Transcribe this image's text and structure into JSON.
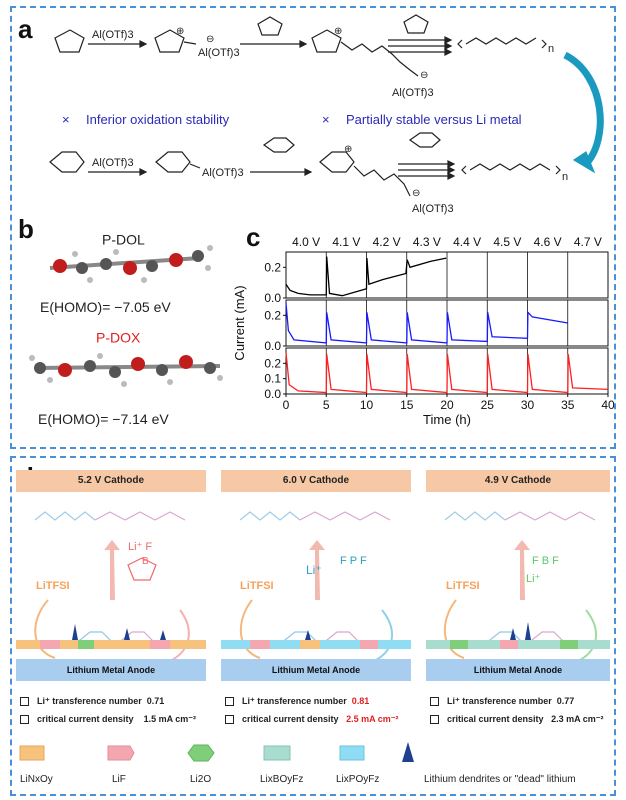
{
  "panels": {
    "a": "a",
    "b": "b",
    "c": "c",
    "d": "d"
  },
  "panel_a": {
    "catalyst": "Al(OTf)3",
    "pos_sign": "⊕",
    "neg_sign": "⊖",
    "cation_label_1": "Al(OTf)3",
    "chain_end_label": "Al(OTf)3",
    "note_1": "Inferior oxidation stability",
    "note_2": "Partially stable versus Li metal",
    "cross": "×",
    "sub_n": "n"
  },
  "panel_b": {
    "pdol_title": "P-DOL",
    "pdol_homo": "E(HOMO)= −7.05 eV",
    "pdox_title": "P-DOX",
    "pdox_homo": "E(HOMO)= −7.14 eV"
  },
  "chart_data": {
    "type": "line",
    "voltage_labels": [
      "4.0 V",
      "4.1 V",
      "4.2 V",
      "4.3 V",
      "4.4 V",
      "4.5 V",
      "4.6 V",
      "4.7 V"
    ],
    "xlabel": "Time (h)",
    "ylabel": "Current (mA)",
    "xlim": [
      0,
      40
    ],
    "x_ticks": [
      "0",
      "5",
      "10",
      "15",
      "20",
      "25",
      "30",
      "35",
      "40"
    ],
    "subplots": [
      {
        "ylim": [
          0,
          0.3
        ],
        "y_ticks": [
          "0.0",
          "0.2"
        ],
        "color": "#000000",
        "points": [
          [
            0,
            0.09
          ],
          [
            0.5,
            0.05
          ],
          [
            1.5,
            0.03
          ],
          [
            3,
            0.02
          ],
          [
            5,
            0.02
          ],
          [
            5.05,
            0.27
          ],
          [
            5.4,
            0.03
          ],
          [
            7,
            0.015
          ],
          [
            10,
            0.06
          ],
          [
            10.05,
            0.26
          ],
          [
            10.3,
            0.09
          ],
          [
            12,
            0.12
          ],
          [
            14.9,
            0.16
          ],
          [
            15.05,
            0.25
          ],
          [
            15.4,
            0.2
          ],
          [
            18,
            0.24
          ],
          [
            19.9,
            0.26
          ]
        ]
      },
      {
        "ylim": [
          0,
          0.3
        ],
        "y_ticks": [
          "0.0",
          "0.2"
        ],
        "color": "#1a1aff",
        "points": [
          [
            0,
            0.28
          ],
          [
            0.3,
            0.1
          ],
          [
            1,
            0.04
          ],
          [
            5,
            0.02
          ],
          [
            5.05,
            0.22
          ],
          [
            5.6,
            0.04
          ],
          [
            10,
            0.02
          ],
          [
            10.05,
            0.22
          ],
          [
            10.6,
            0.04
          ],
          [
            15,
            0.02
          ],
          [
            15.05,
            0.22
          ],
          [
            15.6,
            0.04
          ],
          [
            20,
            0.02
          ],
          [
            20.05,
            0.22
          ],
          [
            20.6,
            0.04
          ],
          [
            25,
            0.03
          ],
          [
            25.05,
            0.22
          ],
          [
            25.6,
            0.06
          ],
          [
            30,
            0.05
          ],
          [
            30.05,
            0.22
          ],
          [
            30.6,
            0.19
          ],
          [
            35,
            0.15
          ]
        ]
      },
      {
        "ylim": [
          0,
          0.3
        ],
        "y_ticks": [
          "0.0",
          "0.1",
          "0.2"
        ],
        "color": "#ff2020",
        "points": [
          [
            0,
            0.27
          ],
          [
            0.4,
            0.06
          ],
          [
            1.5,
            0.02
          ],
          [
            5,
            0.01
          ],
          [
            5.05,
            0.26
          ],
          [
            5.6,
            0.03
          ],
          [
            10,
            0.01
          ],
          [
            10.05,
            0.26
          ],
          [
            10.6,
            0.03
          ],
          [
            15,
            0.01
          ],
          [
            15.05,
            0.26
          ],
          [
            15.6,
            0.03
          ],
          [
            20,
            0.01
          ],
          [
            20.05,
            0.26
          ],
          [
            20.6,
            0.03
          ],
          [
            25,
            0.01
          ],
          [
            25.05,
            0.26
          ],
          [
            25.6,
            0.03
          ],
          [
            30,
            0.01
          ],
          [
            30.05,
            0.26
          ],
          [
            30.6,
            0.03
          ],
          [
            35,
            0.01
          ],
          [
            35.05,
            0.26
          ],
          [
            35.6,
            0.04
          ],
          [
            40,
            0.03
          ]
        ]
      }
    ]
  },
  "panel_d": {
    "cols": [
      {
        "header": "5.2 V Cathode",
        "salt_label": "LiTFSI",
        "anode": "Lithium Metal Anode",
        "prop1_label": "Li⁺ transference number",
        "prop1_value": "0.71",
        "prop2_label": "critical current density",
        "prop2_value": "1.5 mA cm⁻²",
        "salt_color": "#f06a6a",
        "value_color": "#222222"
      },
      {
        "header": "6.0 V Cathode",
        "salt_label": "LiTFSI",
        "anode": "Lithium Metal Anode",
        "prop1_label": "Li⁺ transference number",
        "prop1_value": "0.81",
        "prop2_label": "critical current density",
        "prop2_value": "2.5 mA cm⁻²",
        "salt_color": "#2a9fc4",
        "value_color": "#e02020"
      },
      {
        "header": "4.9 V Cathode",
        "salt_label": "LiTFSI",
        "anode": "Lithium Metal Anode",
        "prop1_label": "Li⁺ transference number",
        "prop1_value": "0.77",
        "prop2_label": "critical current density",
        "prop2_value": "2.3 mA cm⁻²",
        "salt_color": "#5cc86a",
        "value_color": "#222222"
      }
    ],
    "legend": [
      {
        "label": "LiNxOy",
        "color": "#f7c27e"
      },
      {
        "label": "LiF",
        "color": "#f4a7b0"
      },
      {
        "label": "Li2O",
        "color": "#7fcf7a"
      },
      {
        "label": "LixBOyFz",
        "color": "#a8dccf"
      },
      {
        "label": "LixPOyFz",
        "color": "#8fdcf3"
      },
      {
        "label": "Lithium dendrites or \"dead\" lithium",
        "color": "#1f3f8f"
      }
    ]
  }
}
